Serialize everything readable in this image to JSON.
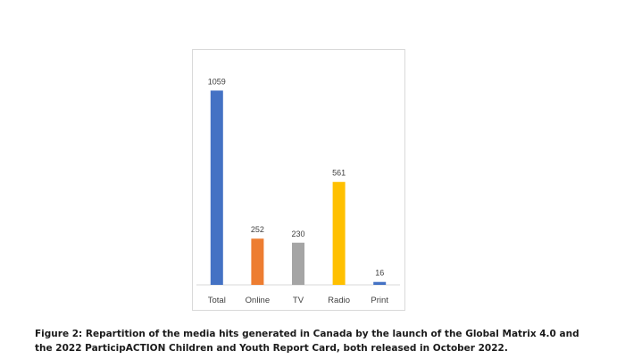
{
  "chart_data": {
    "type": "bar",
    "categories": [
      "Total",
      "Online",
      "TV",
      "Radio",
      "Print"
    ],
    "values": [
      1059,
      252,
      230,
      561,
      16
    ],
    "data_labels": [
      "1059",
      "252",
      "230",
      "561",
      "16"
    ],
    "colors": [
      "#4472c4",
      "#ed7d31",
      "#a5a5a5",
      "#ffc000",
      "#4472c4"
    ],
    "title": "",
    "xlabel": "",
    "ylabel": "",
    "ylim": [
      0,
      1100
    ],
    "grid": false,
    "legend": "none"
  },
  "caption": {
    "line1": "Figure 2: Repartition of the media hits generated in Canada by the launch of the Global Matrix 4.0 and",
    "line2": "the 2022 ParticipACTION Children and Youth Report Card, both released in October 2022."
  }
}
